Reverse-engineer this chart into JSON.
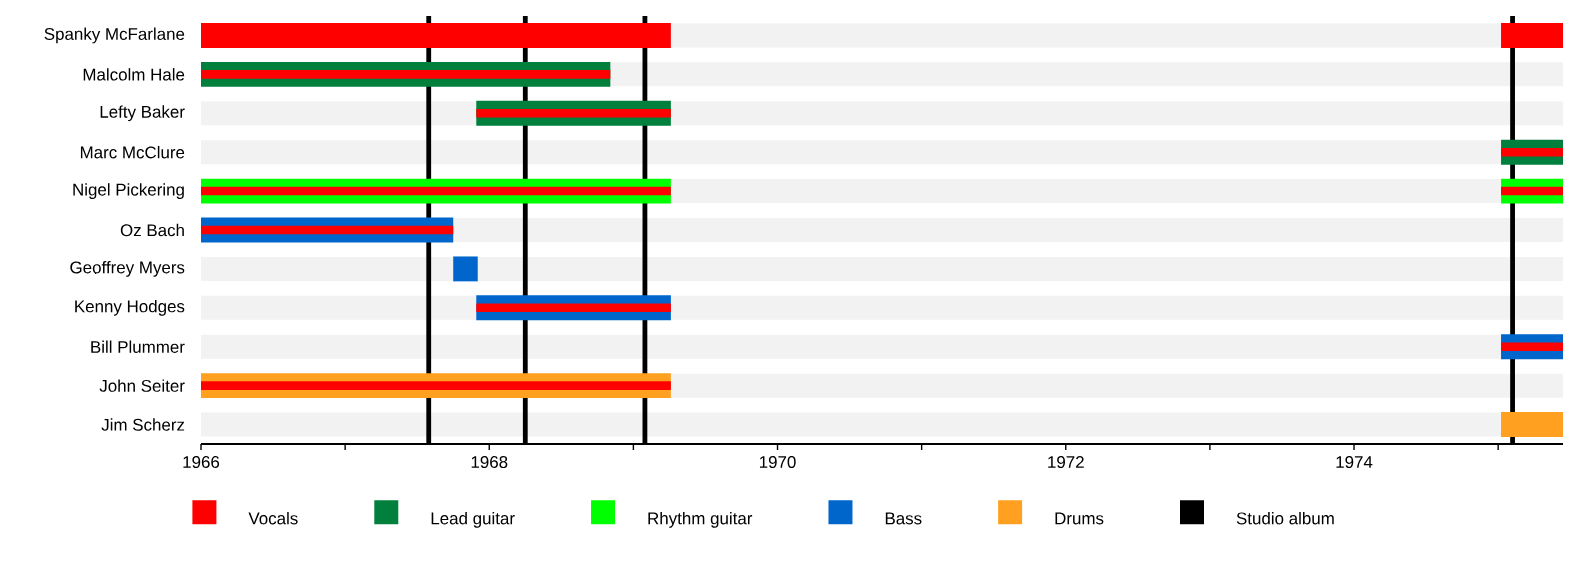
{
  "chart_data": {
    "type": "bar",
    "orientation": "horizontal",
    "categories": [
      "Spanky McFarlane",
      "Malcolm Hale",
      "Lefty Baker",
      "Marc McClure",
      "Nigel Pickering",
      "Oz Bach",
      "Geoffrey Myers",
      "Kenny Hodges",
      "Bill Plummer",
      "John Seiter",
      "Jim Scherz"
    ],
    "series": [
      {
        "name": "Vocals",
        "color": "#ff0000",
        "base": [
          1966,
          1966,
          1967.91,
          null,
          1966,
          1966,
          null,
          1967.91,
          null,
          1966,
          null
        ],
        "values": [
          3.26,
          2.84,
          1.35,
          null,
          3.26,
          1.75,
          null,
          1.35,
          null,
          3.26,
          null
        ]
      },
      {
        "color": "#ff0000",
        "base": [
          1975.02,
          null,
          null,
          1975.02,
          1975.02,
          null,
          null,
          null,
          1975.02,
          null,
          null
        ],
        "values": [
          0.43,
          null,
          null,
          0.43,
          0.43,
          null,
          null,
          null,
          0.43,
          null,
          null
        ]
      },
      {
        "name": "Lead guitar",
        "color": "#00803c",
        "base": [
          null,
          1966,
          1967.91,
          null,
          null,
          null,
          null,
          null,
          null,
          null,
          null
        ],
        "values": [
          null,
          2.84,
          1.35,
          null,
          null,
          null,
          null,
          null,
          null,
          null,
          null
        ]
      },
      {
        "color": "#00803c",
        "base": [
          null,
          null,
          null,
          1975.02,
          null,
          null,
          null,
          null,
          null,
          null,
          null
        ],
        "values": [
          null,
          null,
          null,
          0.43,
          null,
          null,
          null,
          null,
          null,
          null,
          null
        ]
      },
      {
        "name": "Rhythm guitar",
        "color": "#00ff00",
        "base": [
          null,
          null,
          null,
          null,
          1966,
          null,
          null,
          null,
          null,
          null,
          null
        ],
        "values": [
          null,
          null,
          null,
          null,
          3.26,
          null,
          null,
          null,
          null,
          null,
          null
        ]
      },
      {
        "color": "#00ff00",
        "base": [
          null,
          null,
          null,
          null,
          1975.02,
          null,
          null,
          null,
          null,
          null,
          null
        ],
        "values": [
          null,
          null,
          null,
          null,
          0.43,
          null,
          null,
          null,
          null,
          null,
          null
        ]
      },
      {
        "name": "Bass",
        "color": "#0066cc",
        "base": [
          null,
          null,
          null,
          null,
          null,
          1966,
          1967.75,
          1967.91,
          null,
          null,
          null
        ],
        "values": [
          null,
          null,
          null,
          null,
          null,
          1.75,
          0.17,
          1.35,
          null,
          null,
          null
        ]
      },
      {
        "color": "#0066cc",
        "base": [
          null,
          null,
          null,
          null,
          null,
          null,
          null,
          null,
          1975.02,
          null,
          null
        ],
        "values": [
          null,
          null,
          null,
          null,
          null,
          null,
          null,
          null,
          0.43,
          null,
          null
        ]
      },
      {
        "name": "Drums",
        "color": "#ffa020",
        "base": [
          null,
          null,
          null,
          null,
          null,
          null,
          null,
          null,
          null,
          1966,
          null
        ],
        "values": [
          null,
          null,
          null,
          null,
          null,
          null,
          null,
          null,
          null,
          3.26,
          null
        ]
      },
      {
        "color": "#ffa020",
        "base": [
          null,
          null,
          null,
          null,
          null,
          null,
          null,
          null,
          null,
          null,
          1975.02
        ],
        "values": [
          null,
          null,
          null,
          null,
          null,
          null,
          null,
          null,
          null,
          null,
          0.43
        ]
      }
    ],
    "ref_lines": [
      {
        "axis": "x",
        "value": 1967.58,
        "label": "Studio album",
        "color": "#000000"
      },
      {
        "axis": "x",
        "value": 1968.25,
        "color": "#000000"
      },
      {
        "axis": "x",
        "value": 1969.08,
        "color": "#000000"
      },
      {
        "axis": "x",
        "value": 1975.1,
        "color": "#000000"
      }
    ],
    "xlim": [
      1966,
      1975.45
    ],
    "xticks": [
      1966,
      {
        "value": 1967,
        "label": null
      },
      1968,
      {
        "value": 1969,
        "label": null
      },
      1970,
      {
        "value": 1971,
        "label": null
      },
      1972,
      {
        "value": 1973,
        "label": null
      },
      1974,
      {
        "value": 1975,
        "label": null
      }
    ],
    "grid": "y",
    "legend": "bottom"
  }
}
